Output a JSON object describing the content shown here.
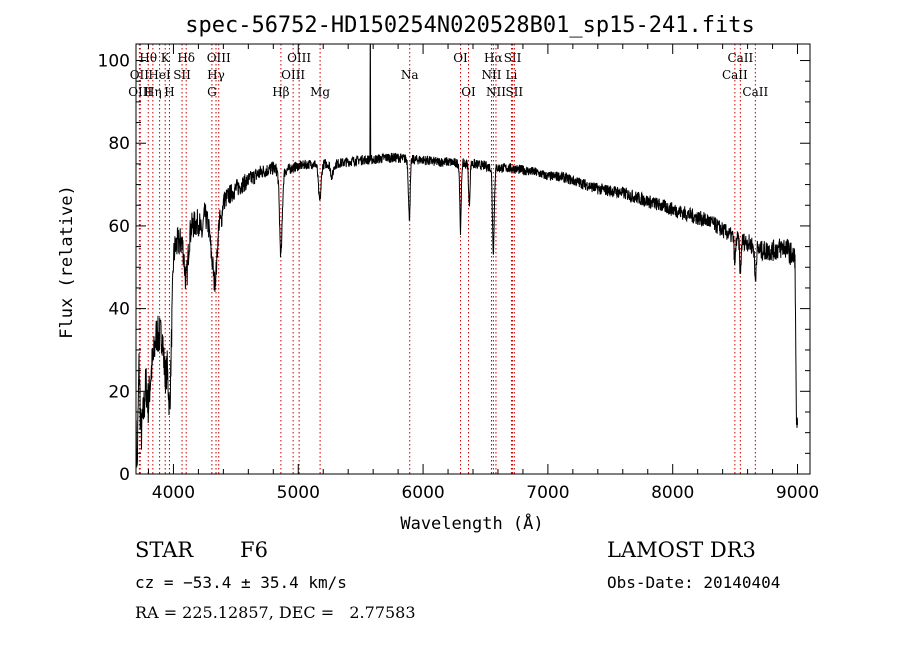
{
  "chart_data": {
    "type": "line",
    "title": "spec-56752-HD150254N020528B01_sp15-241.fits",
    "xlabel": "Wavelength (Å)",
    "ylabel": "Flux (relative)",
    "xlim": [
      3700,
      9100
    ],
    "ylim": [
      0,
      104
    ],
    "xticks": [
      4000,
      5000,
      6000,
      7000,
      8000,
      9000
    ],
    "yticks": [
      0,
      20,
      40,
      60,
      80,
      100
    ],
    "series": [
      {
        "name": "flux",
        "anchors": [
          [
            3700,
            10
          ],
          [
            3710,
            5
          ],
          [
            3725,
            40
          ],
          [
            3740,
            32
          ],
          [
            3760,
            38
          ],
          [
            3780,
            44
          ],
          [
            3800,
            36
          ],
          [
            3830,
            44
          ],
          [
            3860,
            42
          ],
          [
            3890,
            48
          ],
          [
            3920,
            42
          ],
          [
            3950,
            45
          ],
          [
            3970,
            34
          ],
          [
            4000,
            55
          ],
          [
            4050,
            56
          ],
          [
            4100,
            57
          ],
          [
            4150,
            60
          ],
          [
            4200,
            61
          ],
          [
            4250,
            63
          ],
          [
            4300,
            58
          ],
          [
            4340,
            57
          ],
          [
            4360,
            62
          ],
          [
            4400,
            66
          ],
          [
            4500,
            69
          ],
          [
            4600,
            71
          ],
          [
            4700,
            73
          ],
          [
            4800,
            74
          ],
          [
            4861,
            73
          ],
          [
            4950,
            74
          ],
          [
            5000,
            74.5
          ],
          [
            5100,
            75
          ],
          [
            5172,
            75
          ],
          [
            5300,
            75
          ],
          [
            5400,
            75.5
          ],
          [
            5500,
            76
          ],
          [
            5600,
            76
          ],
          [
            5700,
            76.5
          ],
          [
            5800,
            76.5
          ],
          [
            5890,
            76
          ],
          [
            6000,
            76
          ],
          [
            6100,
            75.5
          ],
          [
            6200,
            75.5
          ],
          [
            6300,
            75
          ],
          [
            6400,
            75
          ],
          [
            6500,
            74.5
          ],
          [
            6563,
            74
          ],
          [
            6700,
            74
          ],
          [
            6800,
            73.5
          ],
          [
            6900,
            73
          ],
          [
            7000,
            72
          ],
          [
            7100,
            72
          ],
          [
            7200,
            71
          ],
          [
            7300,
            70
          ],
          [
            7400,
            69
          ],
          [
            7500,
            68.5
          ],
          [
            7600,
            68
          ],
          [
            7700,
            67
          ],
          [
            7800,
            66
          ],
          [
            7900,
            65
          ],
          [
            8000,
            64
          ],
          [
            8100,
            63
          ],
          [
            8200,
            62
          ],
          [
            8300,
            61
          ],
          [
            8400,
            59
          ],
          [
            8500,
            57
          ],
          [
            8600,
            56
          ],
          [
            8700,
            54
          ],
          [
            8800,
            54
          ],
          [
            8900,
            55
          ],
          [
            8980,
            52
          ],
          [
            8990,
            15
          ],
          [
            9000,
            10
          ]
        ],
        "absorption": [
          [
            3734,
            10,
            20
          ],
          [
            3750,
            12,
            25
          ],
          [
            3771,
            12,
            25
          ],
          [
            3798,
            14,
            25
          ],
          [
            3835,
            15,
            25
          ],
          [
            3889,
            14,
            25
          ],
          [
            3934,
            16,
            20
          ],
          [
            3968,
            18,
            25
          ],
          [
            4102,
            10,
            20
          ],
          [
            4227,
            4,
            15
          ],
          [
            4308,
            5,
            15
          ],
          [
            4326,
            5,
            10
          ],
          [
            4341,
            8,
            20
          ],
          [
            4383,
            3,
            10
          ],
          [
            4861,
            20,
            15
          ],
          [
            5172,
            9,
            15
          ],
          [
            5270,
            3,
            15
          ],
          [
            5890,
            14,
            10
          ],
          [
            6300,
            16,
            8
          ],
          [
            6370,
            10,
            8
          ],
          [
            6563,
            20,
            10
          ],
          [
            8498,
            6,
            8
          ],
          [
            8542,
            8,
            8
          ],
          [
            8662,
            8,
            8
          ]
        ],
        "spikes": [
          [
            5577,
            104
          ]
        ],
        "noise": [
          [
            3700,
            6
          ],
          [
            4000,
            4
          ],
          [
            4400,
            2.5
          ],
          [
            5000,
            1.2
          ],
          [
            7000,
            1.2
          ],
          [
            8500,
            2
          ],
          [
            9000,
            3
          ]
        ]
      }
    ],
    "lines": [
      {
        "label": "Hθ",
        "wave": 3798,
        "row": 1
      },
      {
        "label": "OII",
        "wave": 3727,
        "row": 2
      },
      {
        "label": "OIII",
        "wave": 3734,
        "row": 3
      },
      {
        "label": "Hη",
        "wave": 3835,
        "row": 3
      },
      {
        "label": "K",
        "wave": 3934,
        "row": 1
      },
      {
        "label": "HeI",
        "wave": 3889,
        "row": 2
      },
      {
        "label": "H",
        "wave": 3968,
        "row": 3
      },
      {
        "label": "Hδ",
        "wave": 4102,
        "row": 1
      },
      {
        "label": "SII",
        "wave": 4069,
        "row": 2
      },
      {
        "label": "OIII",
        "wave": 4363,
        "row": 1
      },
      {
        "label": "Hγ",
        "wave": 4341,
        "row": 2
      },
      {
        "label": "G",
        "wave": 4308,
        "row": 3
      },
      {
        "label": "Hβ",
        "wave": 4861,
        "row": 3
      },
      {
        "label": "OIII",
        "wave": 5007,
        "row": 1
      },
      {
        "label": "OIII",
        "wave": 4959,
        "row": 2
      },
      {
        "label": "Mg",
        "wave": 5175,
        "row": 3
      },
      {
        "label": "Na",
        "wave": 5893,
        "row": 2
      },
      {
        "label": "OI",
        "wave": 6300,
        "row": 1
      },
      {
        "label": "OI",
        "wave": 6364,
        "row": 3
      },
      {
        "label": "Hα",
        "wave": 6563,
        "row": 1
      },
      {
        "label": "NII",
        "wave": 6548,
        "row": 2
      },
      {
        "label": "NII",
        "wave": 6584,
        "row": 3
      },
      {
        "label": "SII",
        "wave": 6717,
        "row": 1
      },
      {
        "label": "Li",
        "wave": 6708,
        "row": 2
      },
      {
        "label": "SII",
        "wave": 6731,
        "row": 3
      },
      {
        "label": "CaII",
        "wave": 8542,
        "row": 1
      },
      {
        "label": "CaII",
        "wave": 8498,
        "row": 2
      },
      {
        "label": "CaII",
        "wave": 8662,
        "row": 3
      }
    ],
    "line_color": "#c00000",
    "grid": false,
    "legend": "none"
  },
  "footer": {
    "object_class": "STAR",
    "subclass": "F6",
    "survey": "LAMOST DR3",
    "redshift": "cz = −53.4 ± 35.4 km/s",
    "obs_date": "Obs-Date: 20140404",
    "coords": "RA = 225.12857, DEC =   2.77583"
  }
}
